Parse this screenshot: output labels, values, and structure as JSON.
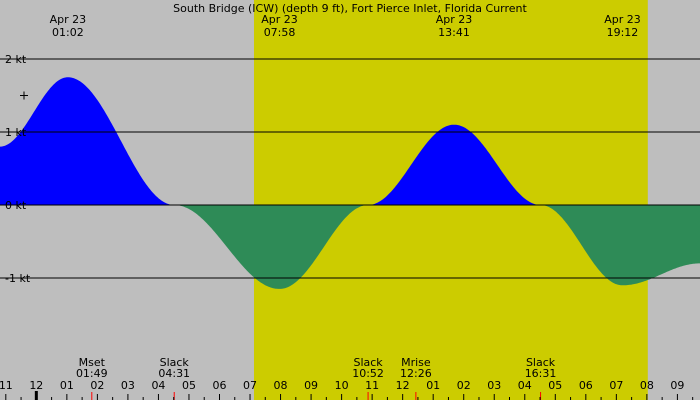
{
  "chart_data": {
    "type": "area",
    "title": "South Bridge (ICW) (depth 9 ft), Fort Pierce Inlet, Florida Current",
    "xlabel": "",
    "ylabel": "",
    "x_unit": "hours",
    "y_unit": "kt",
    "xlim": [
      -1.19,
      21.74
    ],
    "ylim": [
      -2.0,
      2.0
    ],
    "daylight": {
      "start": 7.13,
      "end": 20.03
    },
    "y_ticks": [
      {
        "value": 2,
        "label": "2 kt"
      },
      {
        "value": 1,
        "label": "1 kt"
      },
      {
        "value": 0,
        "label": "0 kt"
      },
      {
        "value": -1,
        "label": "-1 kt"
      }
    ],
    "gridlines": [
      2,
      1,
      0,
      -1
    ],
    "x_ticks": [
      {
        "value": -1,
        "label": "11"
      },
      {
        "value": 0,
        "label": "12"
      },
      {
        "value": 1,
        "label": "01"
      },
      {
        "value": 2,
        "label": "02"
      },
      {
        "value": 3,
        "label": "03"
      },
      {
        "value": 4,
        "label": "04"
      },
      {
        "value": 5,
        "label": "05"
      },
      {
        "value": 6,
        "label": "06"
      },
      {
        "value": 7,
        "label": "07"
      },
      {
        "value": 8,
        "label": "08"
      },
      {
        "value": 9,
        "label": "09"
      },
      {
        "value": 10,
        "label": "10"
      },
      {
        "value": 11,
        "label": "11"
      },
      {
        "value": 12,
        "label": "12"
      },
      {
        "value": 13,
        "label": "01"
      },
      {
        "value": 14,
        "label": "02"
      },
      {
        "value": 15,
        "label": "03"
      },
      {
        "value": 16,
        "label": "04"
      },
      {
        "value": 17,
        "label": "05"
      },
      {
        "value": 18,
        "label": "06"
      },
      {
        "value": 19,
        "label": "07"
      },
      {
        "value": 20,
        "label": "08"
      },
      {
        "value": 21,
        "label": "09"
      }
    ],
    "extremes": [
      {
        "date": "Apr 23",
        "time": "01:02",
        "x": 1.033,
        "y": 1.75
      },
      {
        "date": "Apr 23",
        "time": "07:58",
        "x": 7.967,
        "y": -1.15
      },
      {
        "date": "Apr 23",
        "time": "13:41",
        "x": 13.683,
        "y": 1.1
      },
      {
        "date": "Apr 23",
        "time": "19:12",
        "x": 19.2,
        "y": -1.1
      }
    ],
    "events": [
      {
        "name": "Mset",
        "time": "01:49",
        "x": 1.817
      },
      {
        "name": "Slack",
        "time": "04:31",
        "x": 4.517
      },
      {
        "name": "Slack",
        "time": "10:52",
        "x": 10.867
      },
      {
        "name": "Mrise",
        "time": "12:26",
        "x": 12.433
      },
      {
        "name": "Slack",
        "time": "16:31",
        "x": 16.517
      }
    ],
    "start_value": 0.8,
    "end_value": -0.8,
    "colors": {
      "flood": "#0000ff",
      "ebb": "#2e8b57",
      "daylight": "#cccc00",
      "night": "#bebebe",
      "grid": "#000000",
      "event_tick": "#ff0000",
      "midnight_tick": "#000000"
    }
  }
}
